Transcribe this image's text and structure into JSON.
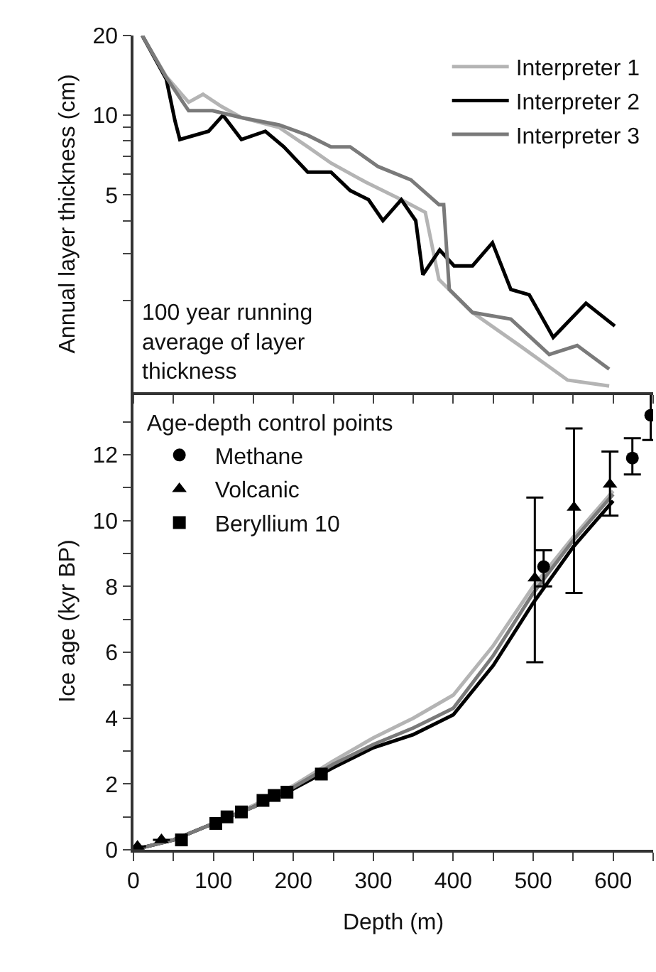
{
  "chart_data": [
    {
      "type": "line",
      "ylabel": "Annual layer thickness (cm)",
      "log": "y",
      "xlim": [
        0,
        650
      ],
      "xticks": [
        {
          "value": 0,
          "label": null
        },
        {
          "value": 50,
          "label": null
        },
        {
          "value": 100,
          "label": null
        },
        {
          "value": 150,
          "label": null
        },
        {
          "value": 200,
          "label": null
        },
        {
          "value": 250,
          "label": null
        },
        {
          "value": 300,
          "label": null
        },
        {
          "value": 350,
          "label": null
        },
        {
          "value": 400,
          "label": null
        },
        {
          "value": 450,
          "label": null
        },
        {
          "value": 500,
          "label": null
        },
        {
          "value": 550,
          "label": null
        },
        {
          "value": 600,
          "label": null
        },
        {
          "value": 650,
          "label": null
        }
      ],
      "ylim": [
        0.9,
        20
      ],
      "yticks": [
        {
          "value": 2,
          "label": null
        },
        {
          "value": 3,
          "label": null
        },
        {
          "value": 4,
          "label": null
        },
        5,
        {
          "value": 6,
          "label": null
        },
        {
          "value": 7,
          "label": null
        },
        {
          "value": 8,
          "label": null
        },
        {
          "value": 9,
          "label": null
        },
        10,
        20
      ],
      "tick_labels": "y",
      "legend": "top right",
      "annotations": [
        "100 year running average of layer thickness"
      ],
      "series": [
        {
          "name": "Interpreter 1",
          "color": "#b4b4b4",
          "x": [
            11,
            41,
            69,
            87,
            110,
            135,
            182,
            218,
            247,
            290,
            335,
            365,
            382,
            424,
            483,
            543,
            595
          ],
          "values": [
            20,
            14,
            11.2,
            12,
            10.8,
            9.8,
            9.0,
            7.6,
            6.6,
            5.6,
            4.8,
            4.3,
            2.4,
            1.8,
            1.35,
            1.0,
            0.95
          ]
        },
        {
          "name": "Interpreter 2",
          "color": "#000000",
          "x": [
            11,
            41,
            52,
            58,
            94,
            112,
            135,
            165,
            188,
            218,
            247,
            271,
            294,
            312,
            335,
            353,
            362,
            383,
            401,
            424,
            449,
            472,
            495,
            525,
            566,
            602
          ],
          "values": [
            20,
            13.7,
            9.5,
            8.1,
            8.7,
            10,
            8.1,
            8.7,
            7.6,
            6.1,
            6.1,
            5.2,
            4.8,
            4.0,
            4.8,
            4.0,
            2.5,
            3.1,
            2.7,
            2.7,
            3.3,
            2.2,
            2.1,
            1.45,
            1.95,
            1.6
          ]
        },
        {
          "name": "Interpreter 3",
          "color": "#7a7a7a",
          "x": [
            11,
            41,
            69,
            99,
            135,
            182,
            218,
            247,
            271,
            306,
            347,
            382,
            388,
            395,
            424,
            472,
            520,
            555,
            595
          ],
          "values": [
            20,
            13.9,
            10.4,
            10.4,
            9.8,
            9.2,
            8.4,
            7.6,
            7.6,
            6.4,
            5.7,
            4.6,
            4.6,
            2.2,
            1.8,
            1.7,
            1.25,
            1.35,
            1.1
          ]
        }
      ]
    },
    {
      "type": "line",
      "xlabel": "Depth (m)",
      "ylabel": "Ice age (kyr BP)",
      "legend_title": "Age-depth control points",
      "xlim": [
        0,
        650
      ],
      "xticks": [
        0,
        {
          "value": 50,
          "label": null
        },
        100,
        {
          "value": 150,
          "label": null
        },
        200,
        {
          "value": 250,
          "label": null
        },
        300,
        {
          "value": 350,
          "label": null
        },
        400,
        {
          "value": 450,
          "label": null
        },
        500,
        {
          "value": 550,
          "label": null
        },
        600,
        {
          "value": 650,
          "label": null
        }
      ],
      "ylim": [
        0,
        13.9
      ],
      "yticks": [
        0,
        {
          "value": 1,
          "label": null
        },
        2,
        {
          "value": 3,
          "label": null
        },
        4,
        {
          "value": 5,
          "label": null
        },
        6,
        {
          "value": 7,
          "label": null
        },
        8,
        {
          "value": 9,
          "label": null
        },
        10,
        {
          "value": 11,
          "label": null
        },
        12,
        {
          "value": 13,
          "label": null
        }
      ],
      "legend": "top left",
      "series": [
        {
          "type": "line",
          "color": "#b4b4b4",
          "x": [
            0,
            50,
            100,
            150,
            200,
            250,
            300,
            350,
            400,
            450,
            500,
            550,
            600
          ],
          "values": [
            0,
            0.3,
            0.8,
            1.35,
            1.95,
            2.7,
            3.4,
            4.0,
            4.7,
            6.2,
            8.0,
            9.5,
            10.9
          ]
        },
        {
          "type": "line",
          "color": "#000000",
          "x": [
            0,
            50,
            100,
            150,
            200,
            250,
            300,
            350,
            400,
            450,
            500,
            550,
            600
          ],
          "values": [
            0,
            0.3,
            0.8,
            1.3,
            1.85,
            2.5,
            3.1,
            3.5,
            4.1,
            5.6,
            7.5,
            9.2,
            10.6
          ]
        },
        {
          "type": "line",
          "color": "#7a7a7a",
          "x": [
            0,
            50,
            100,
            150,
            200,
            250,
            300,
            350,
            400,
            450,
            500,
            550,
            600
          ],
          "values": [
            0,
            0.3,
            0.8,
            1.3,
            1.9,
            2.6,
            3.2,
            3.7,
            4.3,
            5.9,
            7.8,
            9.4,
            10.8
          ]
        },
        {
          "type": "scatter",
          "name": "Methane",
          "color": "#000000",
          "marker": "circle",
          "x": [
            513,
            624,
            647
          ],
          "values": [
            8.6,
            11.9,
            13.2
          ],
          "errors": [
            [
              8.0,
              9.1
            ],
            [
              11.4,
              12.5
            ],
            [
              12.45,
              13.85
            ]
          ]
        },
        {
          "type": "scatter",
          "name": "Volcanic",
          "color": "#000000",
          "marker": "triangle",
          "x": [
            5,
            35,
            502,
            551,
            596
          ],
          "values": [
            0.1,
            0.3,
            8.25,
            10.4,
            11.1
          ],
          "errors": [
            null,
            null,
            [
              5.7,
              10.7
            ],
            [
              7.8,
              12.8
            ],
            [
              10.15,
              12.1
            ]
          ]
        },
        {
          "type": "scatter",
          "name": "Beryllium 10",
          "color": "#000000",
          "marker": "square",
          "x": [
            60,
            103,
            117,
            135,
            162,
            176,
            192,
            235
          ],
          "values": [
            0.3,
            0.8,
            1.0,
            1.15,
            1.5,
            1.65,
            1.75,
            2.3
          ]
        }
      ]
    }
  ]
}
